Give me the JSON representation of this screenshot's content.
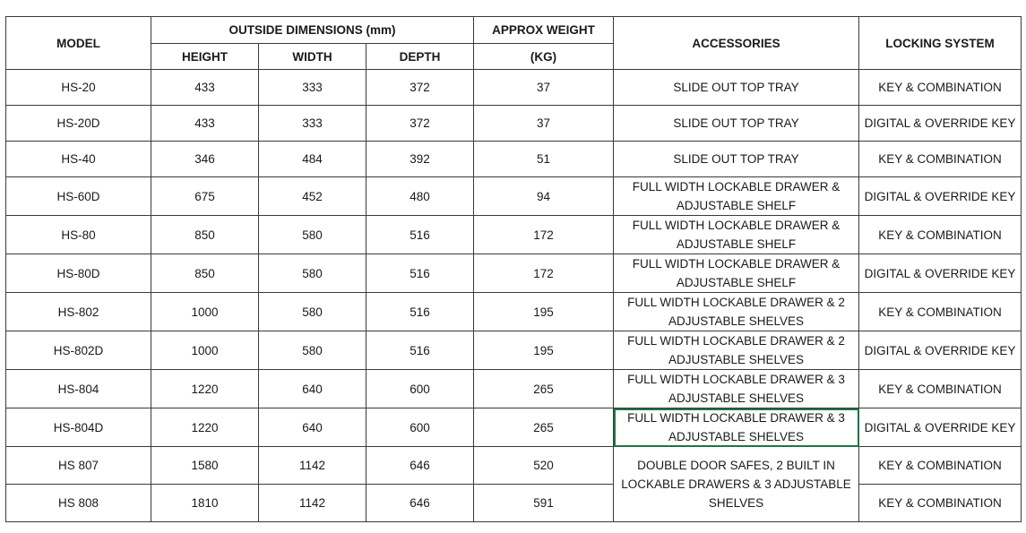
{
  "headers": {
    "model": "MODEL",
    "outside_dimensions": "OUTSIDE DIMENSIONS (mm)",
    "height": "HEIGHT",
    "width": "WIDTH",
    "depth": "DEPTH",
    "approx_weight": "APPROX WEIGHT",
    "weight_unit": "(KG)",
    "accessories": "ACCESSORIES",
    "locking_system": "LOCKING SYSTEM"
  },
  "rows": [
    {
      "model": "HS-20",
      "height": "433",
      "width": "333",
      "depth": "372",
      "weight": "37",
      "accessories": "SLIDE OUT TOP TRAY",
      "locking": "KEY & COMBINATION"
    },
    {
      "model": "HS-20D",
      "height": "433",
      "width": "333",
      "depth": "372",
      "weight": "37",
      "accessories": "SLIDE OUT TOP TRAY",
      "locking": "DIGITAL & OVERRIDE KEY"
    },
    {
      "model": "HS-40",
      "height": "346",
      "width": "484",
      "depth": "392",
      "weight": "51",
      "accessories": "SLIDE OUT TOP TRAY",
      "locking": "KEY & COMBINATION"
    },
    {
      "model": "HS-60D",
      "height": "675",
      "width": "452",
      "depth": "480",
      "weight": "94",
      "accessories": "FULL WIDTH LOCKABLE DRAWER & ADJUSTABLE SHELF",
      "locking": "DIGITAL & OVERRIDE KEY"
    },
    {
      "model": "HS-80",
      "height": "850",
      "width": "580",
      "depth": "516",
      "weight": "172",
      "accessories": "FULL WIDTH LOCKABLE DRAWER & ADJUSTABLE SHELF",
      "locking": "KEY & COMBINATION"
    },
    {
      "model": "HS-80D",
      "height": "850",
      "width": "580",
      "depth": "516",
      "weight": "172",
      "accessories": "FULL WIDTH LOCKABLE DRAWER & ADJUSTABLE SHELF",
      "locking": "DIGITAL & OVERRIDE KEY"
    },
    {
      "model": "HS-802",
      "height": "1000",
      "width": "580",
      "depth": "516",
      "weight": "195",
      "accessories": "FULL WIDTH LOCKABLE DRAWER & 2 ADJUSTABLE SHELVES",
      "locking": "KEY & COMBINATION"
    },
    {
      "model": "HS-802D",
      "height": "1000",
      "width": "580",
      "depth": "516",
      "weight": "195",
      "accessories": "FULL WIDTH LOCKABLE DRAWER & 2 ADJUSTABLE SHELVES",
      "locking": "DIGITAL & OVERRIDE KEY"
    },
    {
      "model": "HS-804",
      "height": "1220",
      "width": "640",
      "depth": "600",
      "weight": "265",
      "accessories": "FULL WIDTH LOCKABLE DRAWER & 3 ADJUSTABLE SHELVES",
      "locking": "KEY & COMBINATION"
    },
    {
      "model": "HS-804D",
      "height": "1220",
      "width": "640",
      "depth": "600",
      "weight": "265",
      "accessories": "FULL WIDTH LOCKABLE DRAWER & 3 ADJUSTABLE SHELVES",
      "locking": "DIGITAL & OVERRIDE KEY"
    },
    {
      "model": "HS 807",
      "height": "1580",
      "width": "1142",
      "depth": "646",
      "weight": "520",
      "accessories": "DOUBLE DOOR SAFES, 2 BUILT IN LOCKABLE DRAWERS & 3 ADJUSTABLE SHELVES",
      "locking": "KEY & COMBINATION"
    },
    {
      "model": "HS 808",
      "height": "1810",
      "width": "1142",
      "depth": "646",
      "weight": "591",
      "locking": "KEY & COMBINATION"
    }
  ],
  "selection_color": "#217346"
}
